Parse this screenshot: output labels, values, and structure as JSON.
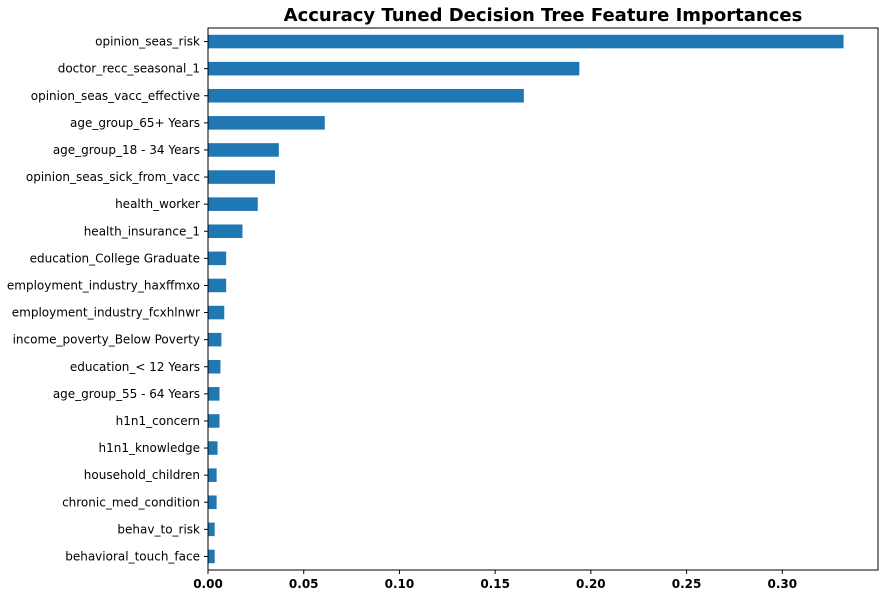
{
  "chart_data": {
    "type": "bar",
    "orientation": "horizontal",
    "title": "Accuracy Tuned Decision Tree Feature Importances",
    "xlabel": "",
    "ylabel": "",
    "xlim": [
      0,
      0.35
    ],
    "x_ticks": [
      "0.00",
      "0.05",
      "0.10",
      "0.15",
      "0.20",
      "0.25",
      "0.30"
    ],
    "grid": false,
    "legend": "none",
    "bar_color": "#1f77b4",
    "categories": [
      "opinion_seas_risk",
      "doctor_recc_seasonal_1",
      "opinion_seas_vacc_effective",
      "age_group_65+ Years",
      "age_group_18 - 34 Years",
      "opinion_seas_sick_from_vacc",
      "health_worker",
      "health_insurance_1",
      "education_College Graduate",
      "employment_industry_haxffmxo",
      "employment_industry_fcxhlnwr",
      "income_poverty_Below Poverty",
      "education_< 12 Years",
      "age_group_55 - 64 Years",
      "h1n1_concern",
      "h1n1_knowledge",
      "household_children",
      "chronic_med_condition",
      "behav_to_risk",
      "behavioral_touch_face"
    ],
    "values": [
      0.332,
      0.194,
      0.165,
      0.061,
      0.037,
      0.035,
      0.026,
      0.018,
      0.0095,
      0.0095,
      0.0085,
      0.007,
      0.0065,
      0.006,
      0.006,
      0.005,
      0.0045,
      0.0045,
      0.0035,
      0.0035
    ]
  }
}
